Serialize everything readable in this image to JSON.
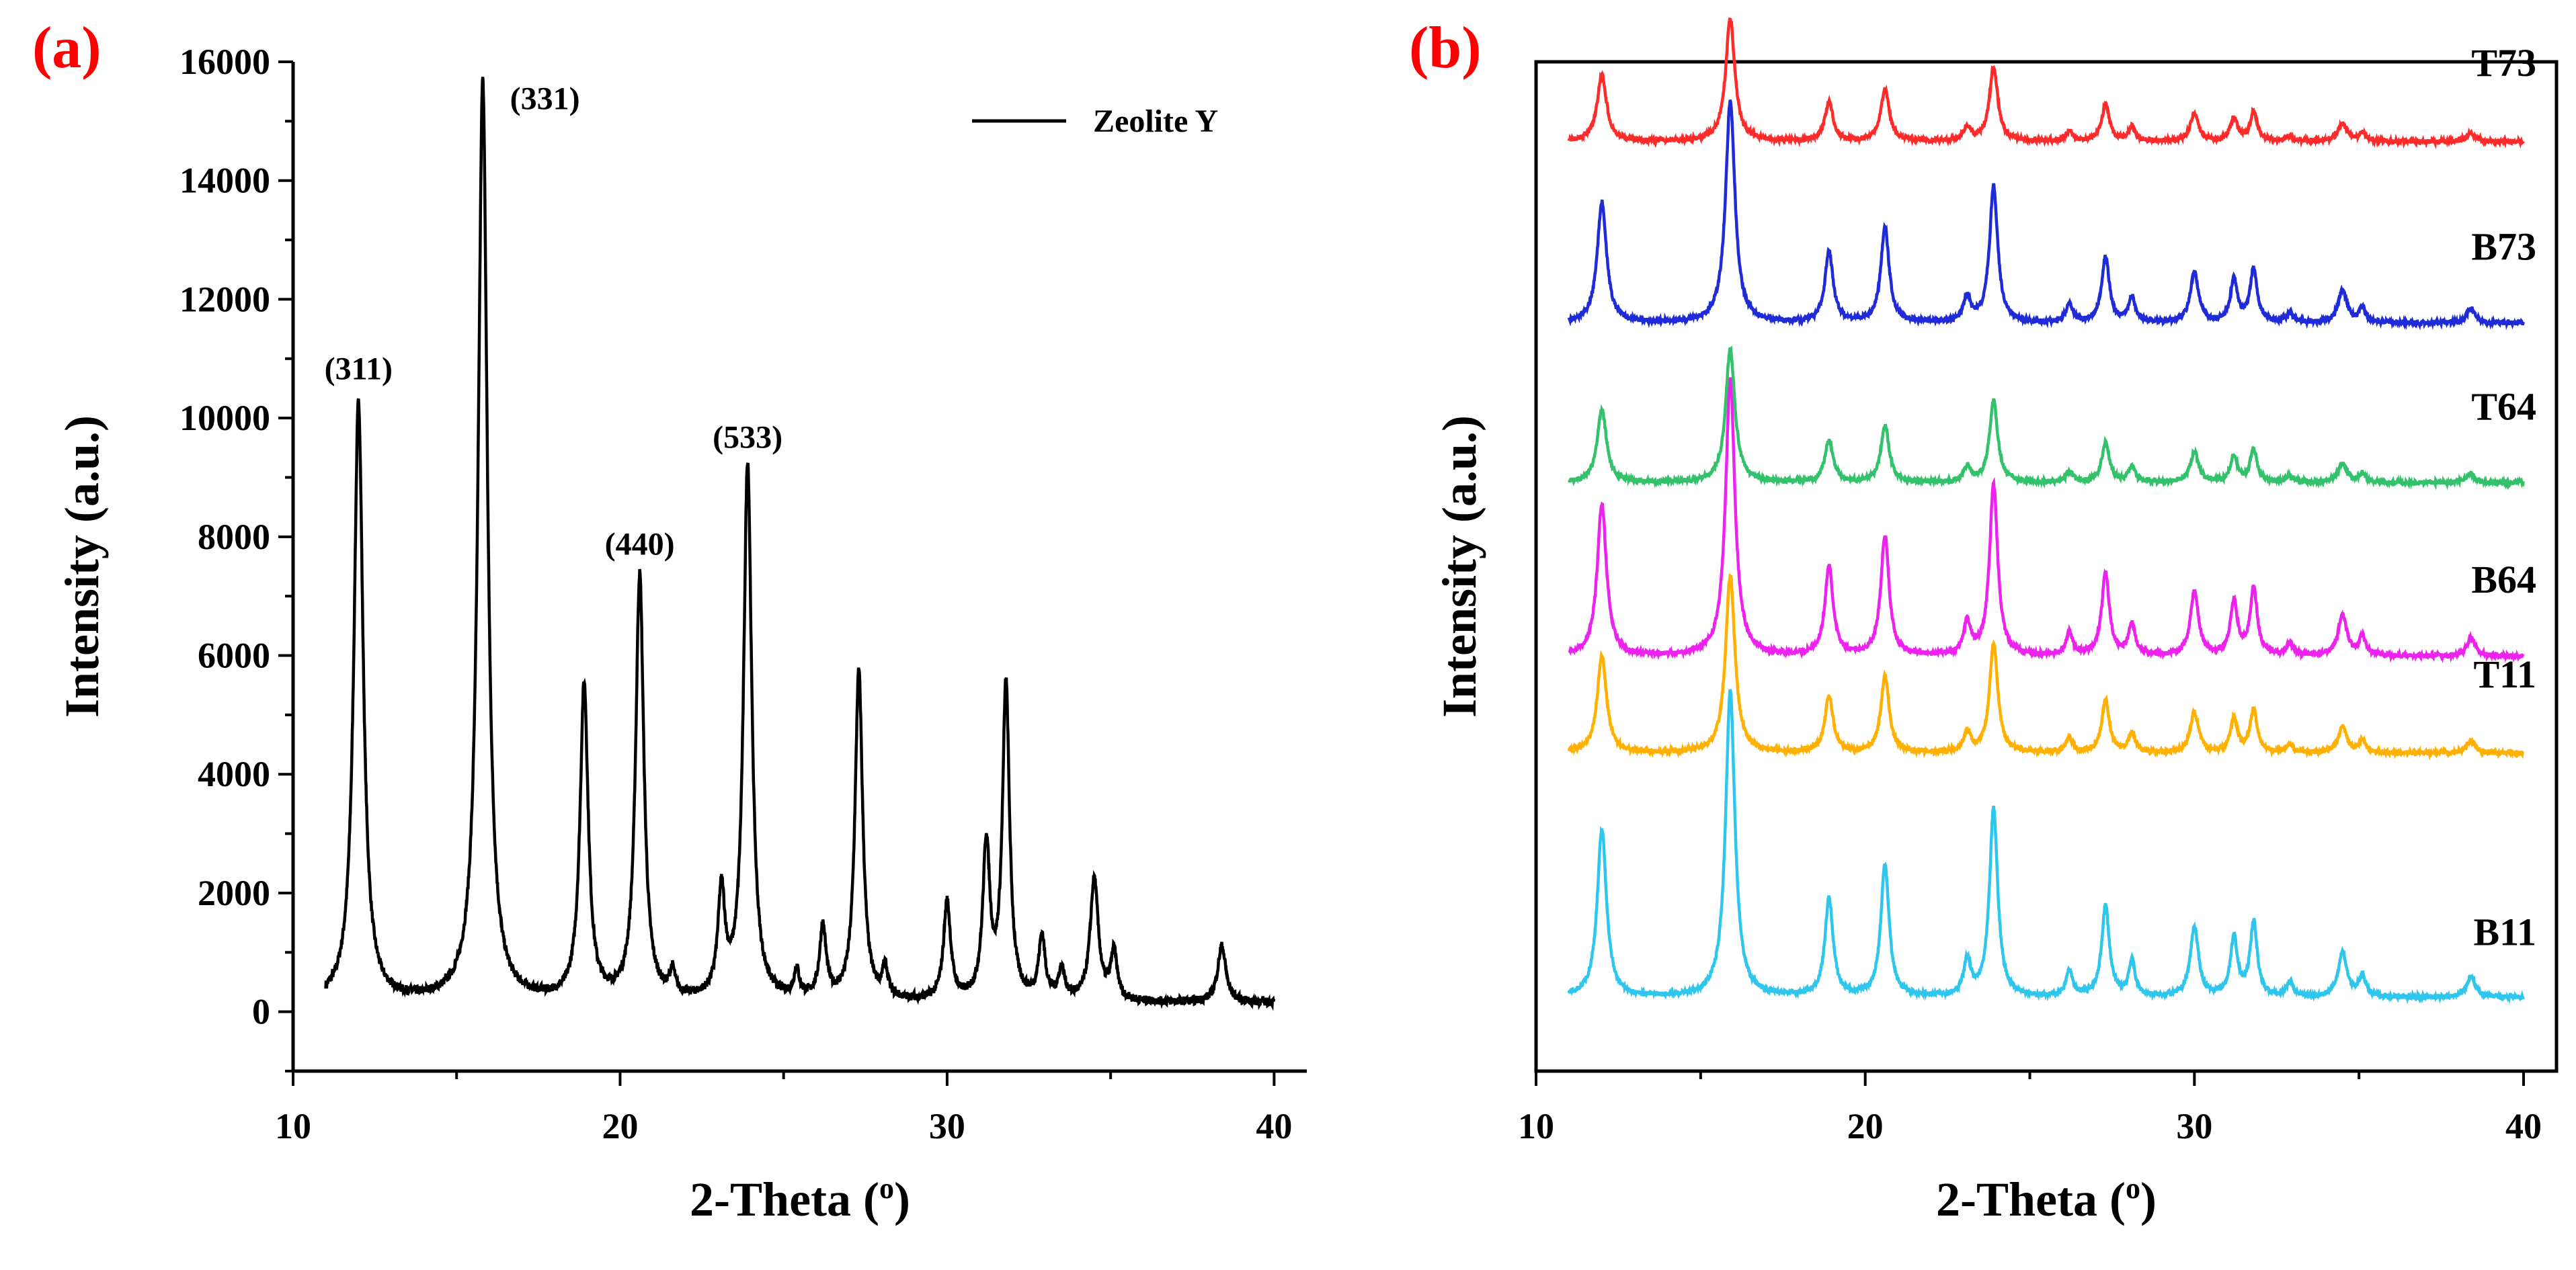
{
  "chart_data": [
    {
      "panel": "(a)",
      "type": "line",
      "title": "",
      "xlabel": "2-Theta (o)",
      "ylabel": "Intensity (a.u.)",
      "xlim": [
        10,
        41
      ],
      "ylim": [
        -1000,
        16000
      ],
      "xticks": [
        10,
        20,
        30,
        40
      ],
      "yticks": [
        0,
        2000,
        4000,
        6000,
        8000,
        10000,
        12000,
        14000,
        16000
      ],
      "legend": {
        "label": "Zeolite Y",
        "position": "top-right",
        "color": "#000000"
      },
      "baseline": 150,
      "peaks": [
        {
          "x": 12.0,
          "y": 10100,
          "w": 0.17
        },
        {
          "x": 15.8,
          "y": 15500,
          "w": 0.17
        },
        {
          "x": 18.9,
          "y": 5300,
          "w": 0.15
        },
        {
          "x": 20.6,
          "y": 7150,
          "w": 0.15
        },
        {
          "x": 21.6,
          "y": 400,
          "w": 0.1
        },
        {
          "x": 23.1,
          "y": 1750,
          "w": 0.13
        },
        {
          "x": 23.9,
          "y": 9050,
          "w": 0.15
        },
        {
          "x": 25.4,
          "y": 450,
          "w": 0.1
        },
        {
          "x": 26.2,
          "y": 1200,
          "w": 0.12
        },
        {
          "x": 27.3,
          "y": 5550,
          "w": 0.14
        },
        {
          "x": 28.1,
          "y": 500,
          "w": 0.1
        },
        {
          "x": 30.0,
          "y": 1650,
          "w": 0.13
        },
        {
          "x": 31.2,
          "y": 2600,
          "w": 0.13
        },
        {
          "x": 31.8,
          "y": 5300,
          "w": 0.13
        },
        {
          "x": 32.9,
          "y": 1050,
          "w": 0.12
        },
        {
          "x": 33.5,
          "y": 500,
          "w": 0.12
        },
        {
          "x": 34.5,
          "y": 2050,
          "w": 0.15
        },
        {
          "x": 35.1,
          "y": 800,
          "w": 0.12
        },
        {
          "x": 38.4,
          "y": 950,
          "w": 0.15
        }
      ],
      "annotations": [
        {
          "text": "(311)",
          "x": 12.0,
          "y": 10650
        },
        {
          "text": "(331)",
          "x": 17.7,
          "y": 15200
        },
        {
          "text": "(440)",
          "x": 20.6,
          "y": 7700
        },
        {
          "text": "(533)",
          "x": 23.9,
          "y": 9500
        }
      ]
    },
    {
      "panel": "(b)",
      "type": "line",
      "title": "",
      "xlabel": "2-Theta (o)",
      "ylabel": "Intensity (a.u.)",
      "xlim": [
        10,
        41
      ],
      "ylim": [
        0,
        100
      ],
      "xticks": [
        10,
        20,
        30,
        40
      ],
      "yticks": [],
      "series": [
        {
          "name": "T73",
          "color": "#ff2a2a",
          "offset": 92.1,
          "scale": 0.55
        },
        {
          "name": "B73",
          "color": "#1f2bd6",
          "offset": 74.1,
          "scale": 1.0
        },
        {
          "name": "T64",
          "color": "#33c26b",
          "offset": 58.3,
          "scale": 0.6
        },
        {
          "name": "B64",
          "color": "#ee22ee",
          "offset": 41.1,
          "scale": 1.25
        },
        {
          "name": "T11",
          "color": "#ffb000",
          "offset": 31.5,
          "scale": 0.8
        },
        {
          "name": "B11",
          "color": "#2fc6ee",
          "offset": 7.3,
          "scale": 1.38
        }
      ],
      "peaks": [
        {
          "x": 12.0,
          "y": 12.0,
          "w": 0.17
        },
        {
          "x": 15.9,
          "y": 22.0,
          "w": 0.17
        },
        {
          "x": 18.9,
          "y": 7.0,
          "w": 0.15
        },
        {
          "x": 20.6,
          "y": 9.5,
          "w": 0.15
        },
        {
          "x": 23.1,
          "y": 2.5,
          "w": 0.13
        },
        {
          "x": 23.9,
          "y": 13.5,
          "w": 0.15
        },
        {
          "x": 26.2,
          "y": 1.8,
          "w": 0.12
        },
        {
          "x": 27.3,
          "y": 6.5,
          "w": 0.14
        },
        {
          "x": 28.1,
          "y": 2.5,
          "w": 0.12
        },
        {
          "x": 30.0,
          "y": 5.0,
          "w": 0.15
        },
        {
          "x": 31.2,
          "y": 4.2,
          "w": 0.13
        },
        {
          "x": 31.8,
          "y": 5.3,
          "w": 0.13
        },
        {
          "x": 32.9,
          "y": 1.0,
          "w": 0.12
        },
        {
          "x": 34.5,
          "y": 3.2,
          "w": 0.16
        },
        {
          "x": 35.1,
          "y": 1.5,
          "w": 0.12
        },
        {
          "x": 38.4,
          "y": 1.5,
          "w": 0.15
        }
      ]
    }
  ],
  "colors": {
    "panel_label": "#ff0000",
    "axis": "#000000"
  }
}
